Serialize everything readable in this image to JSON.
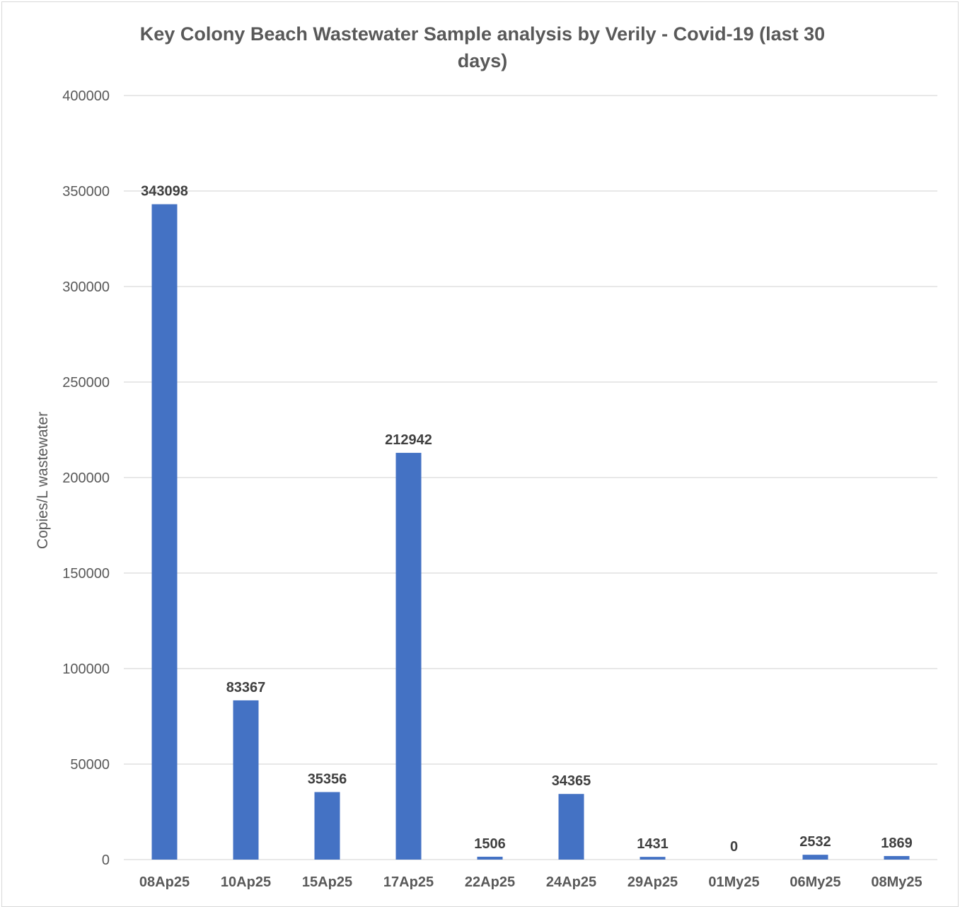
{
  "chart_data": {
    "type": "bar",
    "title_lines": [
      "Key Colony Beach Wastewater Sample analysis by Verily - Covid-19 (last 30",
      "days)"
    ],
    "xlabel": "",
    "ylabel": "Copies/L wastewater",
    "ylim": [
      0,
      400000
    ],
    "yticks": [
      0,
      50000,
      100000,
      150000,
      200000,
      250000,
      300000,
      350000,
      400000
    ],
    "categories": [
      "08Ap25",
      "10Ap25",
      "15Ap25",
      "17Ap25",
      "22Ap25",
      "24Ap25",
      "29Ap25",
      "01My25",
      "06My25",
      "08My25"
    ],
    "values": [
      343098,
      83367,
      35356,
      212942,
      1506,
      34365,
      1431,
      0,
      2532,
      1869
    ],
    "data_labels": [
      "343098",
      "83367",
      "35356",
      "212942",
      "1506",
      "34365",
      "1431",
      "0",
      "2532",
      "1869"
    ],
    "grid": true,
    "legend": "none",
    "bar_color": "#4472C4",
    "gridline_color": "#d9d9d9"
  }
}
